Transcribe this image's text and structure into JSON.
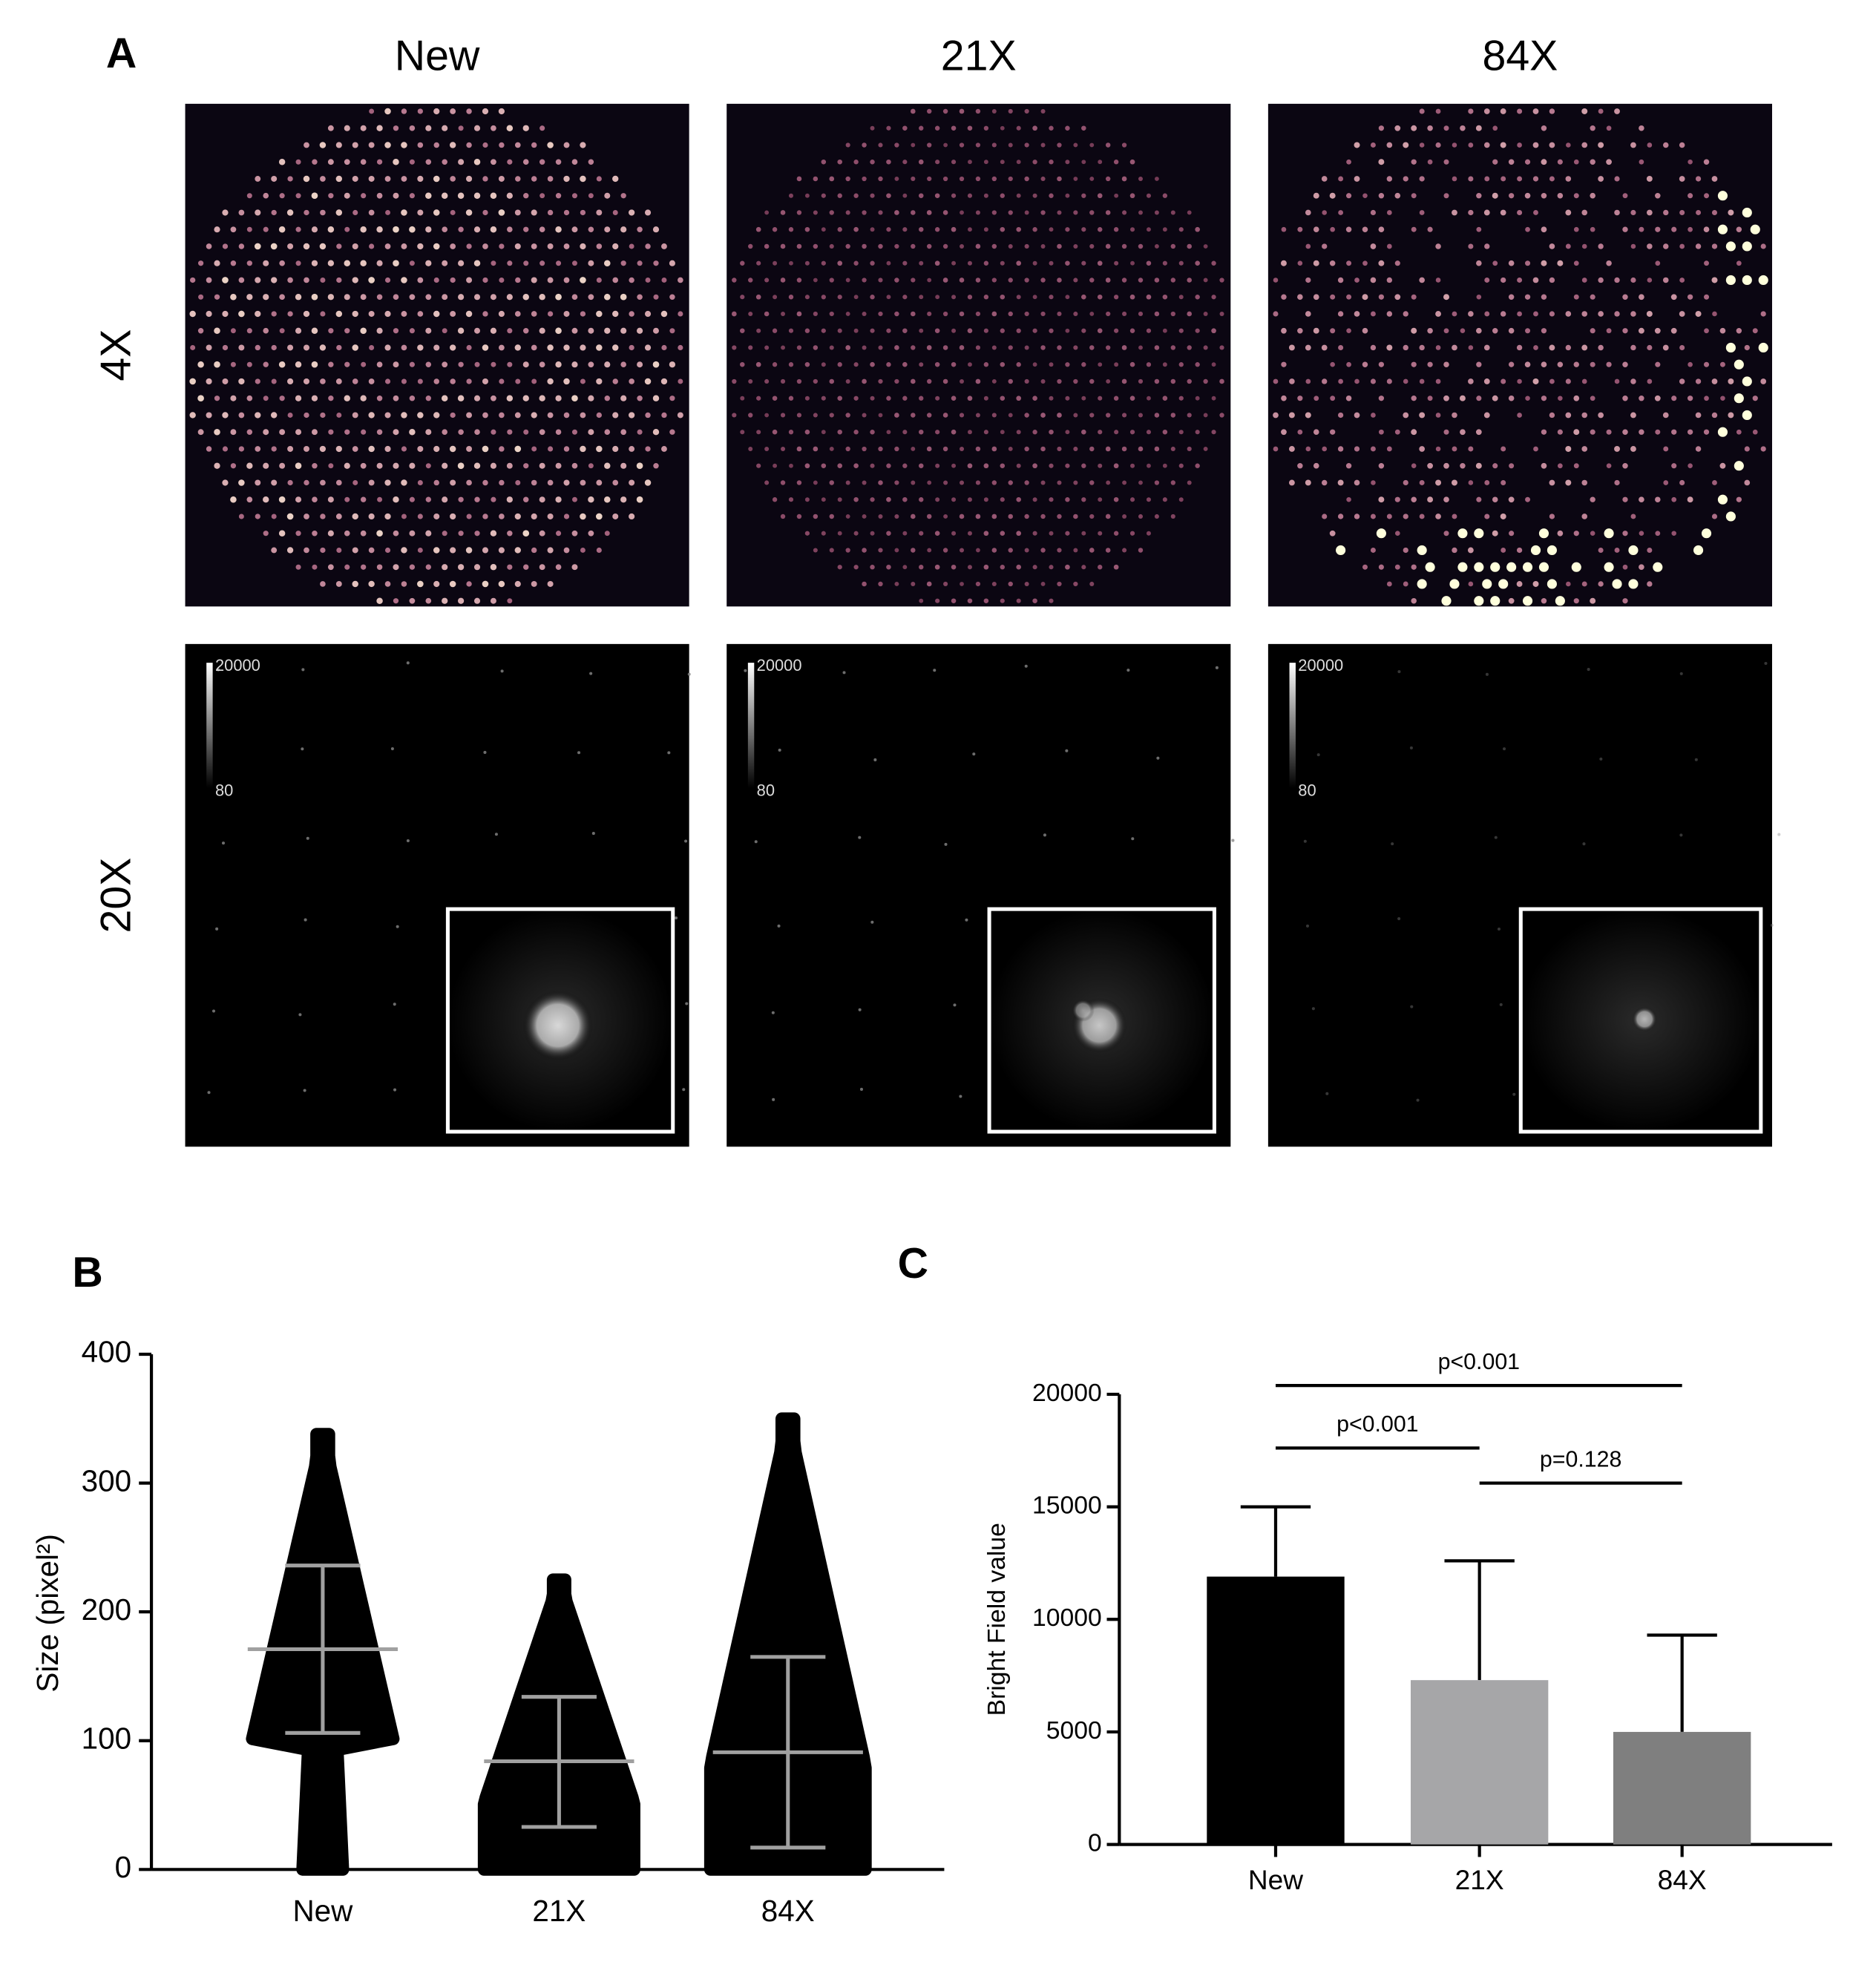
{
  "panel_a": {
    "label": "A",
    "columns": [
      "New",
      "21X",
      "84X"
    ],
    "rows": [
      "4X",
      "20X"
    ],
    "colorbar": {
      "max": "20000",
      "min": "80"
    }
  },
  "chart_data": [
    {
      "type": "dotplot",
      "panel_label": "B",
      "ylabel": "Size (pixel²)",
      "categories": [
        "New",
        "21X",
        "84X"
      ],
      "series": [
        {
          "name": "New",
          "color": "#000000",
          "marker": "circle",
          "mean": 171,
          "lower": 106,
          "upper": 236,
          "min": 0,
          "max": 338
        },
        {
          "name": "21X",
          "color": "#000000",
          "marker": "square",
          "mean": 84,
          "lower": 33,
          "upper": 134,
          "min": 0,
          "max": 225
        },
        {
          "name": "84X",
          "color": "#000000",
          "marker": "triangle",
          "mean": 91,
          "lower": 17,
          "upper": 165,
          "min": 0,
          "max": 350
        }
      ],
      "ylim": [
        0,
        400
      ],
      "yticks": [
        0,
        100,
        200,
        300,
        400
      ],
      "bar_color": "#a0a0a0"
    },
    {
      "type": "bar",
      "panel_label": "C",
      "ylabel": "Bright Field value",
      "categories": [
        "New",
        "21X",
        "84X"
      ],
      "values": [
        11900,
        7300,
        5000
      ],
      "errors": [
        3100,
        5300,
        4300
      ],
      "colors": [
        "#000000",
        "#a6a6a8",
        "#7f7f7f"
      ],
      "ylim": [
        0,
        20000
      ],
      "yticks": [
        0,
        5000,
        10000,
        15000,
        20000
      ],
      "annotations": [
        {
          "text": "p<0.001",
          "from": "New",
          "to": "84X"
        },
        {
          "text": "p<0.001",
          "from": "New",
          "to": "21X"
        },
        {
          "text": "p=0.128",
          "from": "21X",
          "to": "84X"
        }
      ]
    }
  ]
}
